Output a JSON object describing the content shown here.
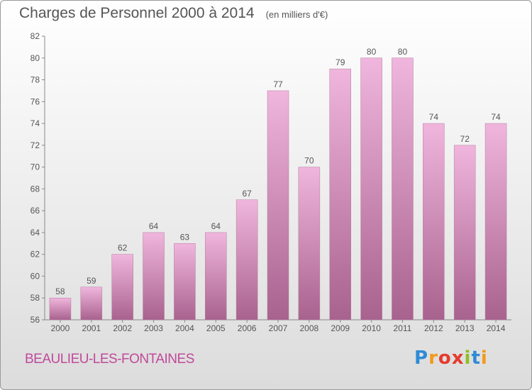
{
  "title": "Charges de Personnel 2000 à 2014",
  "subtitle": "(en milliers d'€)",
  "commune": "BEAULIEU-LES-FONTAINES",
  "logo": {
    "text": "Proxiti",
    "letters": [
      "P",
      "r",
      "o",
      "x",
      "i",
      "t",
      "i"
    ],
    "colors": [
      "#2e8bd6",
      "#f29a1c",
      "#e53b2c",
      "#e53b2c",
      "#8dbf26",
      "#2e8bd6",
      "#f29a1c"
    ]
  },
  "colors": {
    "bar_light": "#f0b6dd",
    "bar_dark": "#a8628e",
    "text": "#555555",
    "commune": "#c0499a"
  },
  "chart_data": {
    "type": "bar",
    "categories": [
      "2000",
      "2001",
      "2002",
      "2003",
      "2004",
      "2005",
      "2006",
      "2007",
      "2008",
      "2009",
      "2010",
      "2011",
      "2012",
      "2013",
      "2014"
    ],
    "values": [
      58,
      59,
      62,
      64,
      63,
      64,
      67,
      77,
      70,
      79,
      80,
      80,
      74,
      72,
      74
    ],
    "title": "Charges de Personnel 2000 à 2014",
    "subtitle": "(en milliers d'€)",
    "ylim": [
      56,
      82
    ],
    "yticks": [
      56,
      58,
      60,
      62,
      64,
      66,
      68,
      70,
      72,
      74,
      76,
      78,
      80,
      82
    ],
    "grid": false,
    "data_labels": true
  }
}
